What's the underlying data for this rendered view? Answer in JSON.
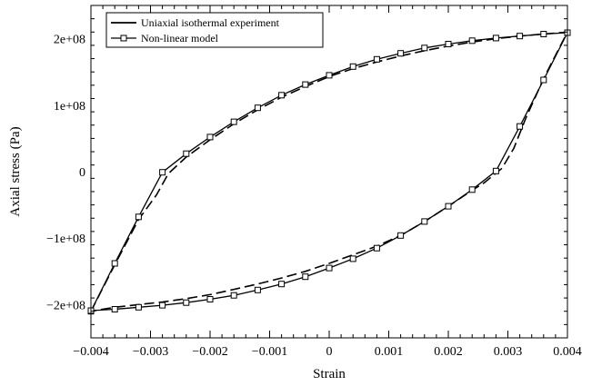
{
  "chart_data": {
    "type": "line",
    "xlabel": "Strain",
    "ylabel": "Axial stress (Pa)",
    "xlim": [
      -0.004,
      0.004
    ],
    "ylim": [
      -250000000,
      250000000
    ],
    "x_ticks": [
      -0.004,
      -0.003,
      -0.002,
      -0.001,
      0,
      0.001,
      0.002,
      0.003,
      0.004
    ],
    "x_tick_labels": [
      "−0.004",
      "−0.003",
      "−0.002",
      "−0.001",
      "0",
      "0.001",
      "0.002",
      "0.003",
      "0.004"
    ],
    "y_ticks": [
      -200000000,
      -100000000,
      0,
      100000000,
      200000000
    ],
    "y_tick_labels": [
      "−2e+08",
      "−1e+08",
      "0",
      "1e+08",
      "2e+08"
    ],
    "grid": false,
    "legend_position": "top-left",
    "series": [
      {
        "name": "Uniaxial isothermal experiment",
        "style": "dashed",
        "color": "#000000",
        "x": [
          -0.004,
          -0.0036,
          -0.0032,
          -0.0029,
          -0.0027,
          -0.0024,
          -0.002,
          -0.0016,
          -0.0012,
          -0.0008,
          -0.0004,
          0,
          0.0004,
          0.0008,
          0.0012,
          0.0016,
          0.002,
          0.0024,
          0.0028,
          0.0032,
          0.0036,
          0.004,
          0.0036,
          0.0033,
          0.0031,
          0.0029,
          0.0026,
          0.0024,
          0.002,
          0.0016,
          0.0012,
          0.0008,
          0.0004,
          0,
          -0.0004,
          -0.0008,
          -0.0012,
          -0.0016,
          -0.002,
          -0.0024,
          -0.0028,
          -0.0032,
          -0.0036,
          -0.004
        ],
        "y": [
          -210000000,
          -140000000,
          -72000000,
          -35000000,
          -3000000,
          22000000,
          48000000,
          72000000,
          93000000,
          112000000,
          128000000,
          143000000,
          155000000,
          165000000,
          174000000,
          182000000,
          189000000,
          195000000,
          200000000,
          204000000,
          207000000,
          210000000,
          140000000,
          80000000,
          35000000,
          5000000,
          -17000000,
          -28000000,
          -52000000,
          -75000000,
          -96000000,
          -112000000,
          -125000000,
          -138000000,
          -150000000,
          -160000000,
          -169000000,
          -177000000,
          -185000000,
          -191000000,
          -196000000,
          -200000000,
          -204000000,
          -210000000
        ]
      },
      {
        "name": "Non-linear model",
        "style": "solid-square-markers",
        "color": "#000000",
        "x": [
          -0.004,
          -0.0036,
          -0.0032,
          -0.0028,
          -0.0024,
          -0.002,
          -0.0016,
          -0.0012,
          -0.0008,
          -0.0004,
          0,
          0.0004,
          0.0008,
          0.0012,
          0.0016,
          0.002,
          0.0024,
          0.0028,
          0.0032,
          0.0036,
          0.004,
          0.0036,
          0.0032,
          0.0028,
          0.0024,
          0.002,
          0.0016,
          0.0012,
          0.0008,
          0.0004,
          0,
          -0.0004,
          -0.0008,
          -0.0012,
          -0.0016,
          -0.002,
          -0.0024,
          -0.0028,
          -0.0032,
          -0.0036,
          -0.004
        ],
        "y": [
          -210000000,
          -138000000,
          -68000000,
          -1000000,
          27000000,
          52000000,
          75000000,
          96000000,
          115000000,
          131000000,
          145000000,
          158000000,
          169000000,
          178000000,
          186000000,
          192000000,
          197000000,
          201000000,
          204000000,
          207000000,
          209000000,
          138000000,
          68000000,
          1000000,
          -27000000,
          -52000000,
          -75000000,
          -96000000,
          -115000000,
          -131000000,
          -145000000,
          -158000000,
          -169000000,
          -178000000,
          -186000000,
          -192000000,
          -197000000,
          -201000000,
          -204000000,
          -207000000,
          -209000000
        ]
      }
    ]
  }
}
